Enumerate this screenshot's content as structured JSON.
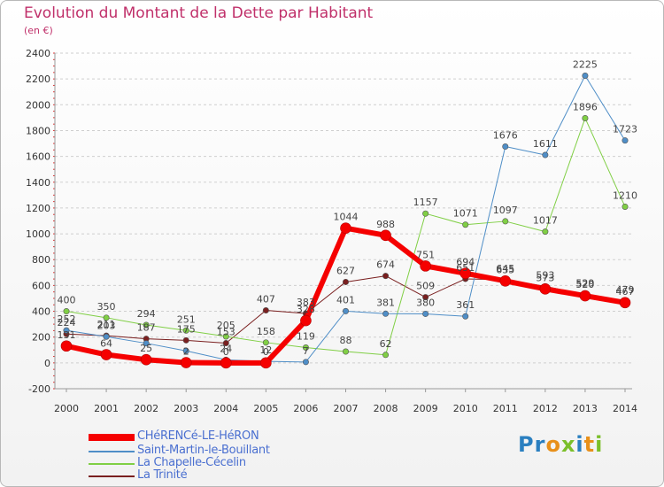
{
  "title": "Evolution du Montant de la Dette par Habitant",
  "unit": "(en €)",
  "logo": {
    "text": "Proxiti",
    "letter_colors": [
      "#2a7fc0",
      "#2a7fc0",
      "#e8901a",
      "#7bbf2a",
      "#2a7fc0",
      "#e8901a",
      "#7bbf2a"
    ]
  },
  "chart_data": {
    "type": "line",
    "x": [
      "2000",
      "2001",
      "2002",
      "2003",
      "2004",
      "2005",
      "2006",
      "2007",
      "2008",
      "2009",
      "2010",
      "2011",
      "2012",
      "2013",
      "2014"
    ],
    "ylim": [
      -200,
      2400
    ],
    "yticks": [
      -200,
      0,
      200,
      400,
      600,
      800,
      1000,
      1200,
      1400,
      1600,
      1800,
      2000,
      2200,
      2400
    ],
    "grid": "horizontal dashed",
    "legend_position": "bottom-left",
    "series": [
      {
        "name": "CHéRENCé-LE-HéRON",
        "color": "#f50000",
        "line_width": 6,
        "values": [
          131,
          64,
          25,
          2,
          0,
          0,
          328,
          1044,
          988,
          751,
          694,
          635,
          573,
          520,
          467
        ],
        "labels": [
          "131",
          "64",
          "25",
          "2",
          "0",
          "0",
          "328",
          "1044",
          "988",
          "751",
          "694",
          "635",
          "573",
          "520",
          "467"
        ]
      },
      {
        "name": "Saint-Martin-le-Bouillant",
        "color": "#4f8ec7",
        "line_width": 1,
        "values": [
          252,
          203,
          152,
          93,
          24,
          12,
          7,
          401,
          381,
          380,
          361,
          1676,
          1611,
          2225,
          1723
        ],
        "labels": [
          "252",
          "203",
          "",
          "",
          "24",
          "12",
          "7",
          "401",
          "381",
          "380",
          "361",
          "1676",
          "1611",
          "2225",
          "1723"
        ]
      },
      {
        "name": "La Chapelle-Cécelin",
        "color": "#80cf45",
        "line_width": 1,
        "values": [
          400,
          350,
          294,
          251,
          205,
          158,
          119,
          88,
          62,
          1157,
          1071,
          1097,
          1017,
          1896,
          1210
        ],
        "labels": [
          "400",
          "350",
          "294",
          "251",
          "205",
          "158",
          "119",
          "88",
          "62",
          "1157",
          "1071",
          "1097",
          "1017",
          "1896",
          "1210"
        ]
      },
      {
        "name": "La Trinité",
        "color": "#7a1f1f",
        "line_width": 1,
        "values": [
          224,
          211,
          187,
          175,
          153,
          407,
          383,
          627,
          674,
          509,
          651,
          645,
          593,
          529,
          479
        ],
        "labels": [
          "224",
          "211",
          "187",
          "175",
          "153",
          "407",
          "383",
          "627",
          "674",
          "509",
          "651",
          "645",
          "593",
          "529",
          "479"
        ]
      }
    ]
  }
}
